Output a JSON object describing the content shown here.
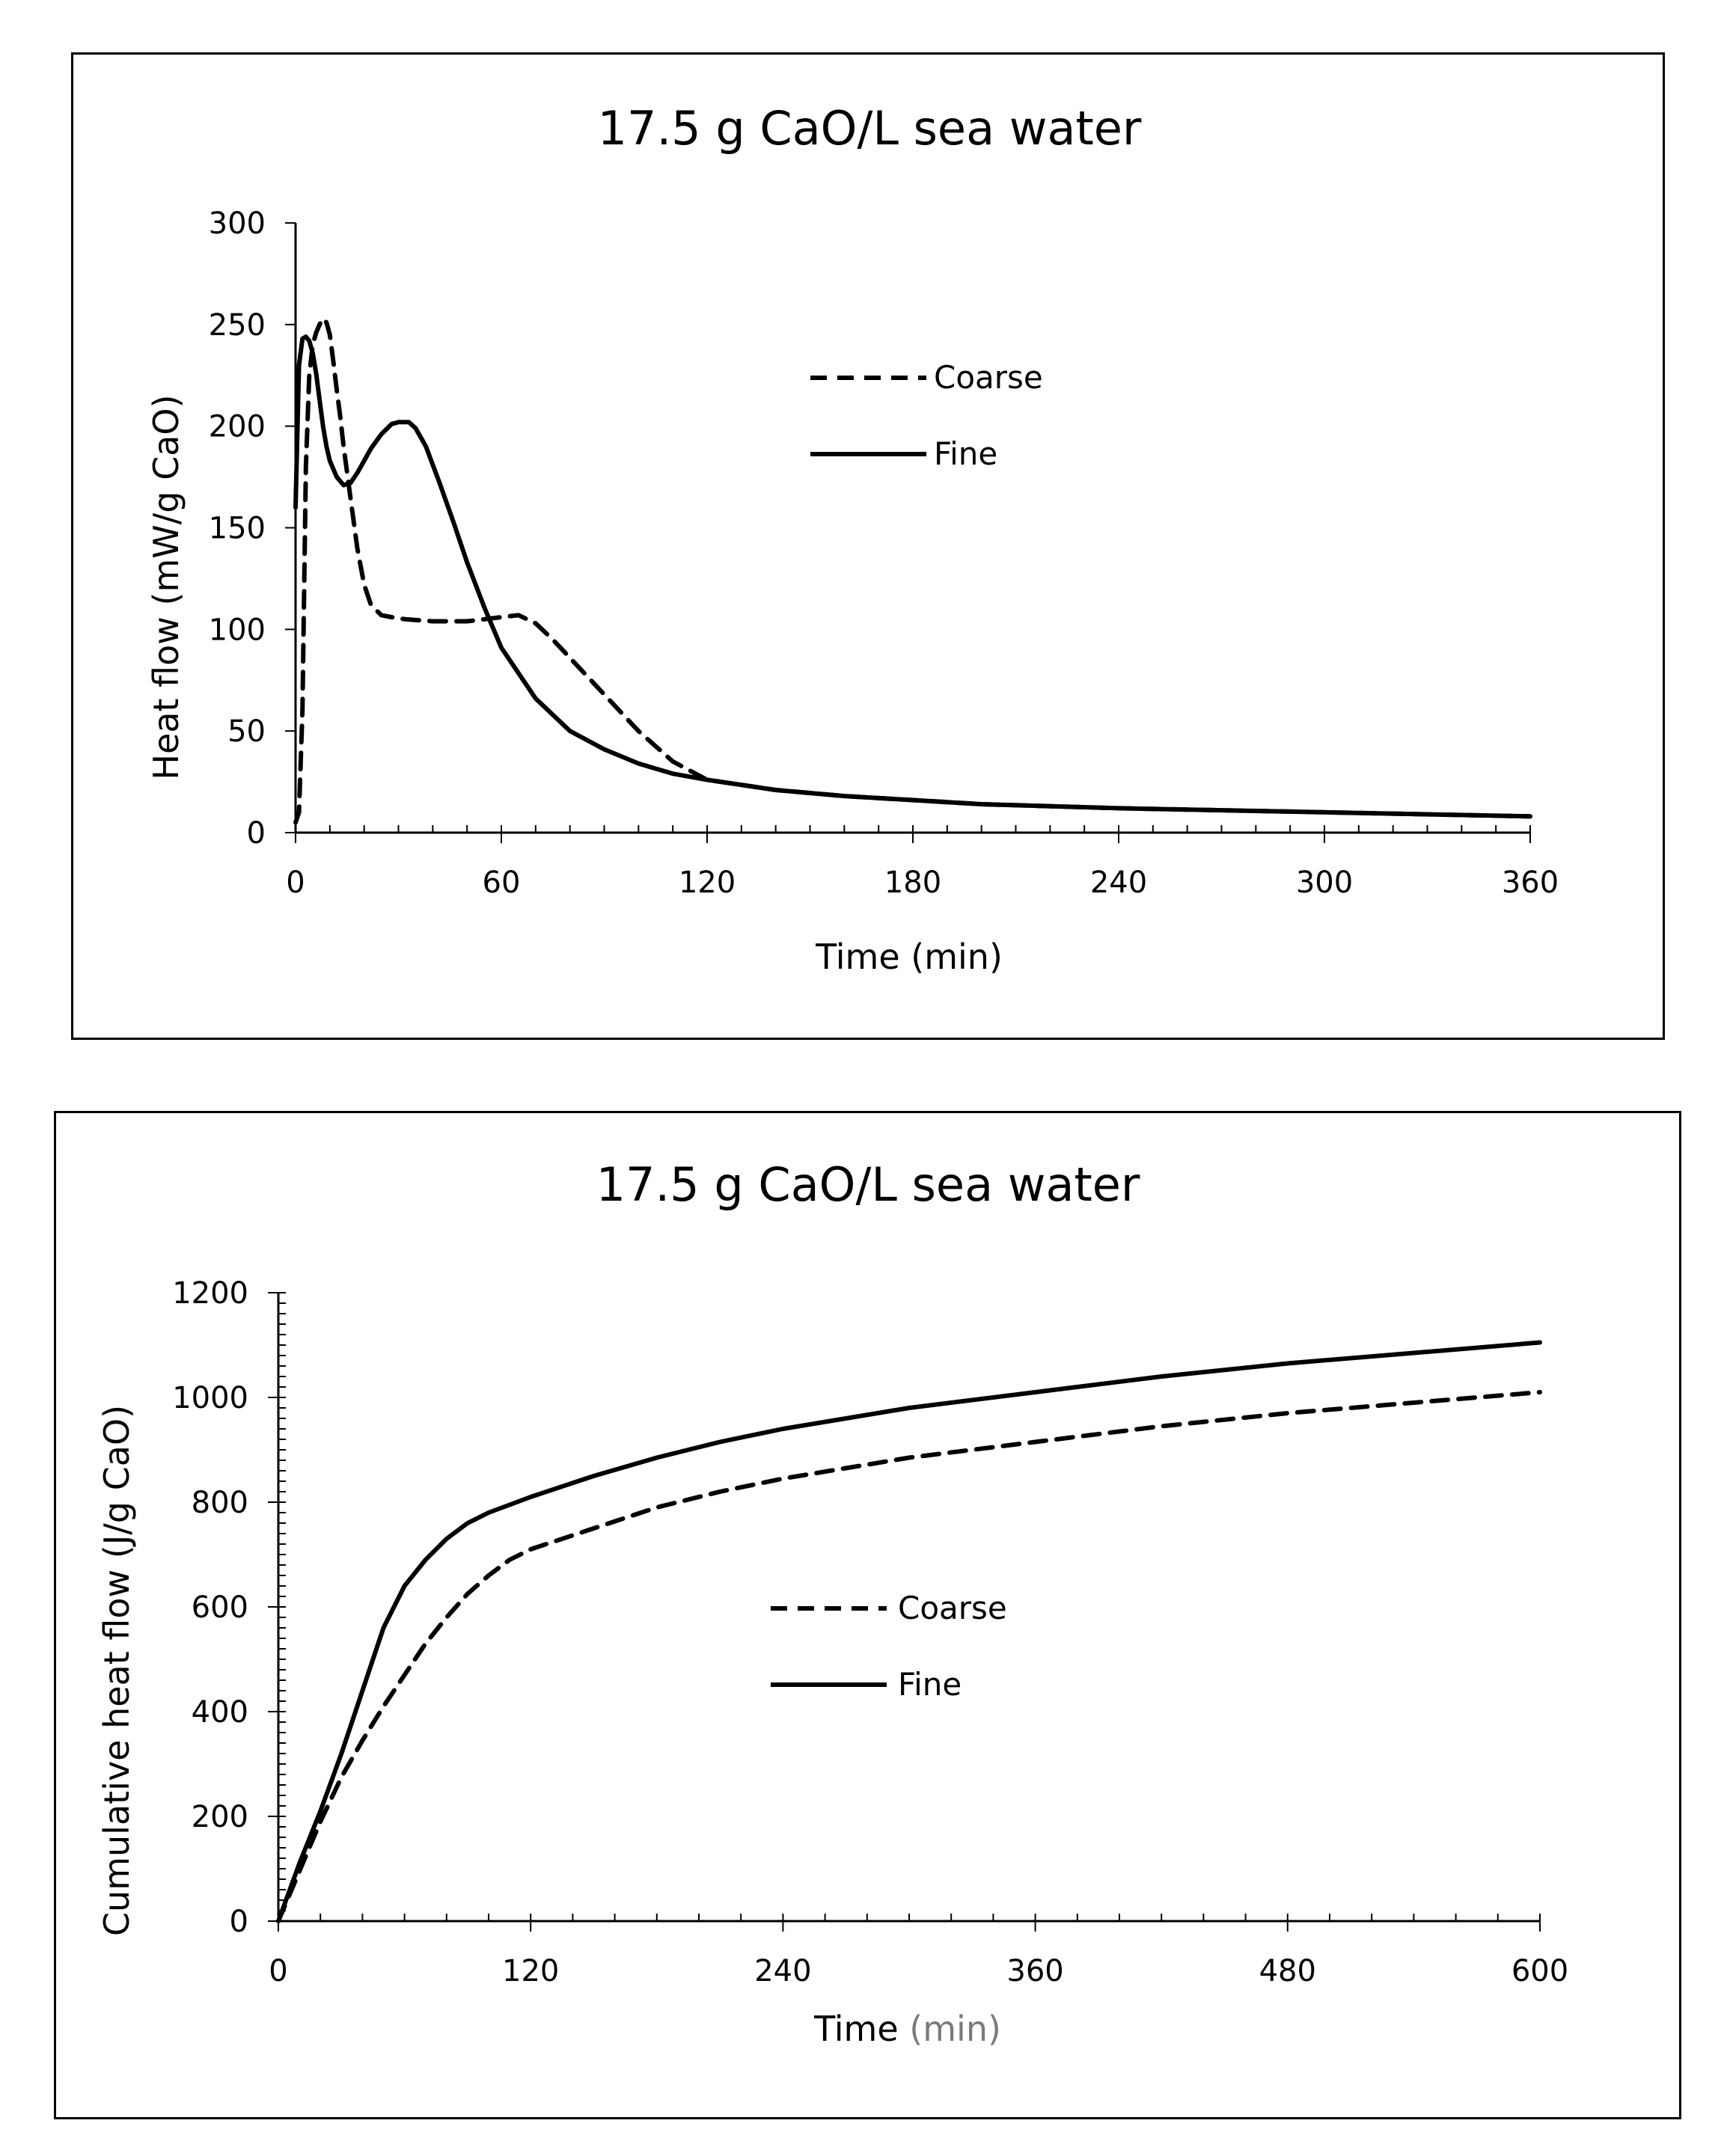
{
  "chart_data": [
    {
      "type": "line",
      "title": "17.5 g CaO/L sea water",
      "xlabel": "Time (min)",
      "ylabel": "Heat flow (mW/g CaO)",
      "xlim": [
        0,
        360
      ],
      "ylim": [
        0,
        300
      ],
      "xticks": [
        0,
        60,
        120,
        180,
        240,
        300,
        360
      ],
      "yticks": [
        0,
        50,
        100,
        150,
        200,
        250,
        300
      ],
      "grid": false,
      "legend_position": "top-center-right",
      "series": [
        {
          "name": "Coarse",
          "style": "dashed",
          "color": "#000000",
          "x": [
            0,
            1,
            2,
            3,
            4,
            5,
            6,
            7,
            8,
            9,
            10,
            11,
            12,
            13,
            14,
            16,
            18,
            20,
            22,
            25,
            28,
            32,
            40,
            50,
            55,
            60,
            65,
            70,
            75,
            80,
            90,
            100,
            110,
            120,
            140,
            160,
            180,
            200,
            240,
            300,
            360
          ],
          "y": [
            5,
            10,
            60,
            180,
            225,
            240,
            246,
            250,
            253,
            251,
            245,
            232,
            218,
            205,
            190,
            165,
            140,
            122,
            112,
            107,
            106,
            105,
            104,
            104,
            105,
            106,
            107,
            103,
            95,
            86,
            68,
            50,
            35,
            26,
            21,
            18,
            16,
            14,
            12,
            10,
            8
          ]
        },
        {
          "name": "Fine",
          "style": "solid",
          "color": "#000000",
          "x": [
            0,
            1,
            2,
            3,
            4,
            5,
            6,
            7,
            8,
            9,
            10,
            12,
            14,
            16,
            18,
            20,
            22,
            25,
            28,
            30,
            33,
            35,
            38,
            42,
            46,
            50,
            55,
            60,
            70,
            80,
            90,
            100,
            110,
            120,
            140,
            160,
            180,
            200,
            240,
            300,
            360
          ],
          "y": [
            160,
            230,
            243,
            244,
            242,
            236,
            226,
            213,
            200,
            190,
            183,
            175,
            171,
            172,
            177,
            183,
            189,
            196,
            201,
            202,
            202,
            199,
            190,
            172,
            153,
            133,
            111,
            91,
            66,
            50,
            41,
            34,
            29,
            26,
            21,
            18,
            16,
            14,
            12,
            10,
            8
          ]
        }
      ]
    },
    {
      "type": "line",
      "title": "17.5 g CaO/L sea water",
      "xlabel_main": "Time",
      "xlabel_unit": "(min)",
      "ylabel": "Cumulative heat flow (J/g CaO)",
      "xlim": [
        0,
        600
      ],
      "ylim": [
        0,
        1200
      ],
      "xticks": [
        0,
        120,
        240,
        360,
        480,
        600
      ],
      "yticks": [
        0,
        200,
        400,
        600,
        800,
        1000,
        1200
      ],
      "grid": false,
      "legend_position": "center",
      "series": [
        {
          "name": "Coarse",
          "style": "dashed",
          "color": "#000000",
          "x": [
            0,
            10,
            20,
            30,
            40,
            50,
            60,
            70,
            80,
            90,
            100,
            110,
            120,
            150,
            180,
            210,
            240,
            270,
            300,
            360,
            420,
            480,
            540,
            600
          ],
          "y": [
            0,
            95,
            190,
            275,
            345,
            410,
            470,
            530,
            580,
            625,
            660,
            690,
            710,
            750,
            790,
            820,
            845,
            865,
            885,
            915,
            945,
            970,
            990,
            1010
          ]
        },
        {
          "name": "Fine",
          "style": "solid",
          "color": "#000000",
          "x": [
            0,
            10,
            20,
            30,
            40,
            50,
            60,
            70,
            80,
            90,
            100,
            120,
            150,
            180,
            210,
            240,
            270,
            300,
            360,
            420,
            480,
            540,
            600
          ],
          "y": [
            0,
            110,
            210,
            320,
            440,
            560,
            640,
            690,
            730,
            760,
            780,
            810,
            850,
            885,
            915,
            940,
            960,
            980,
            1010,
            1040,
            1065,
            1085,
            1105
          ]
        }
      ]
    }
  ]
}
